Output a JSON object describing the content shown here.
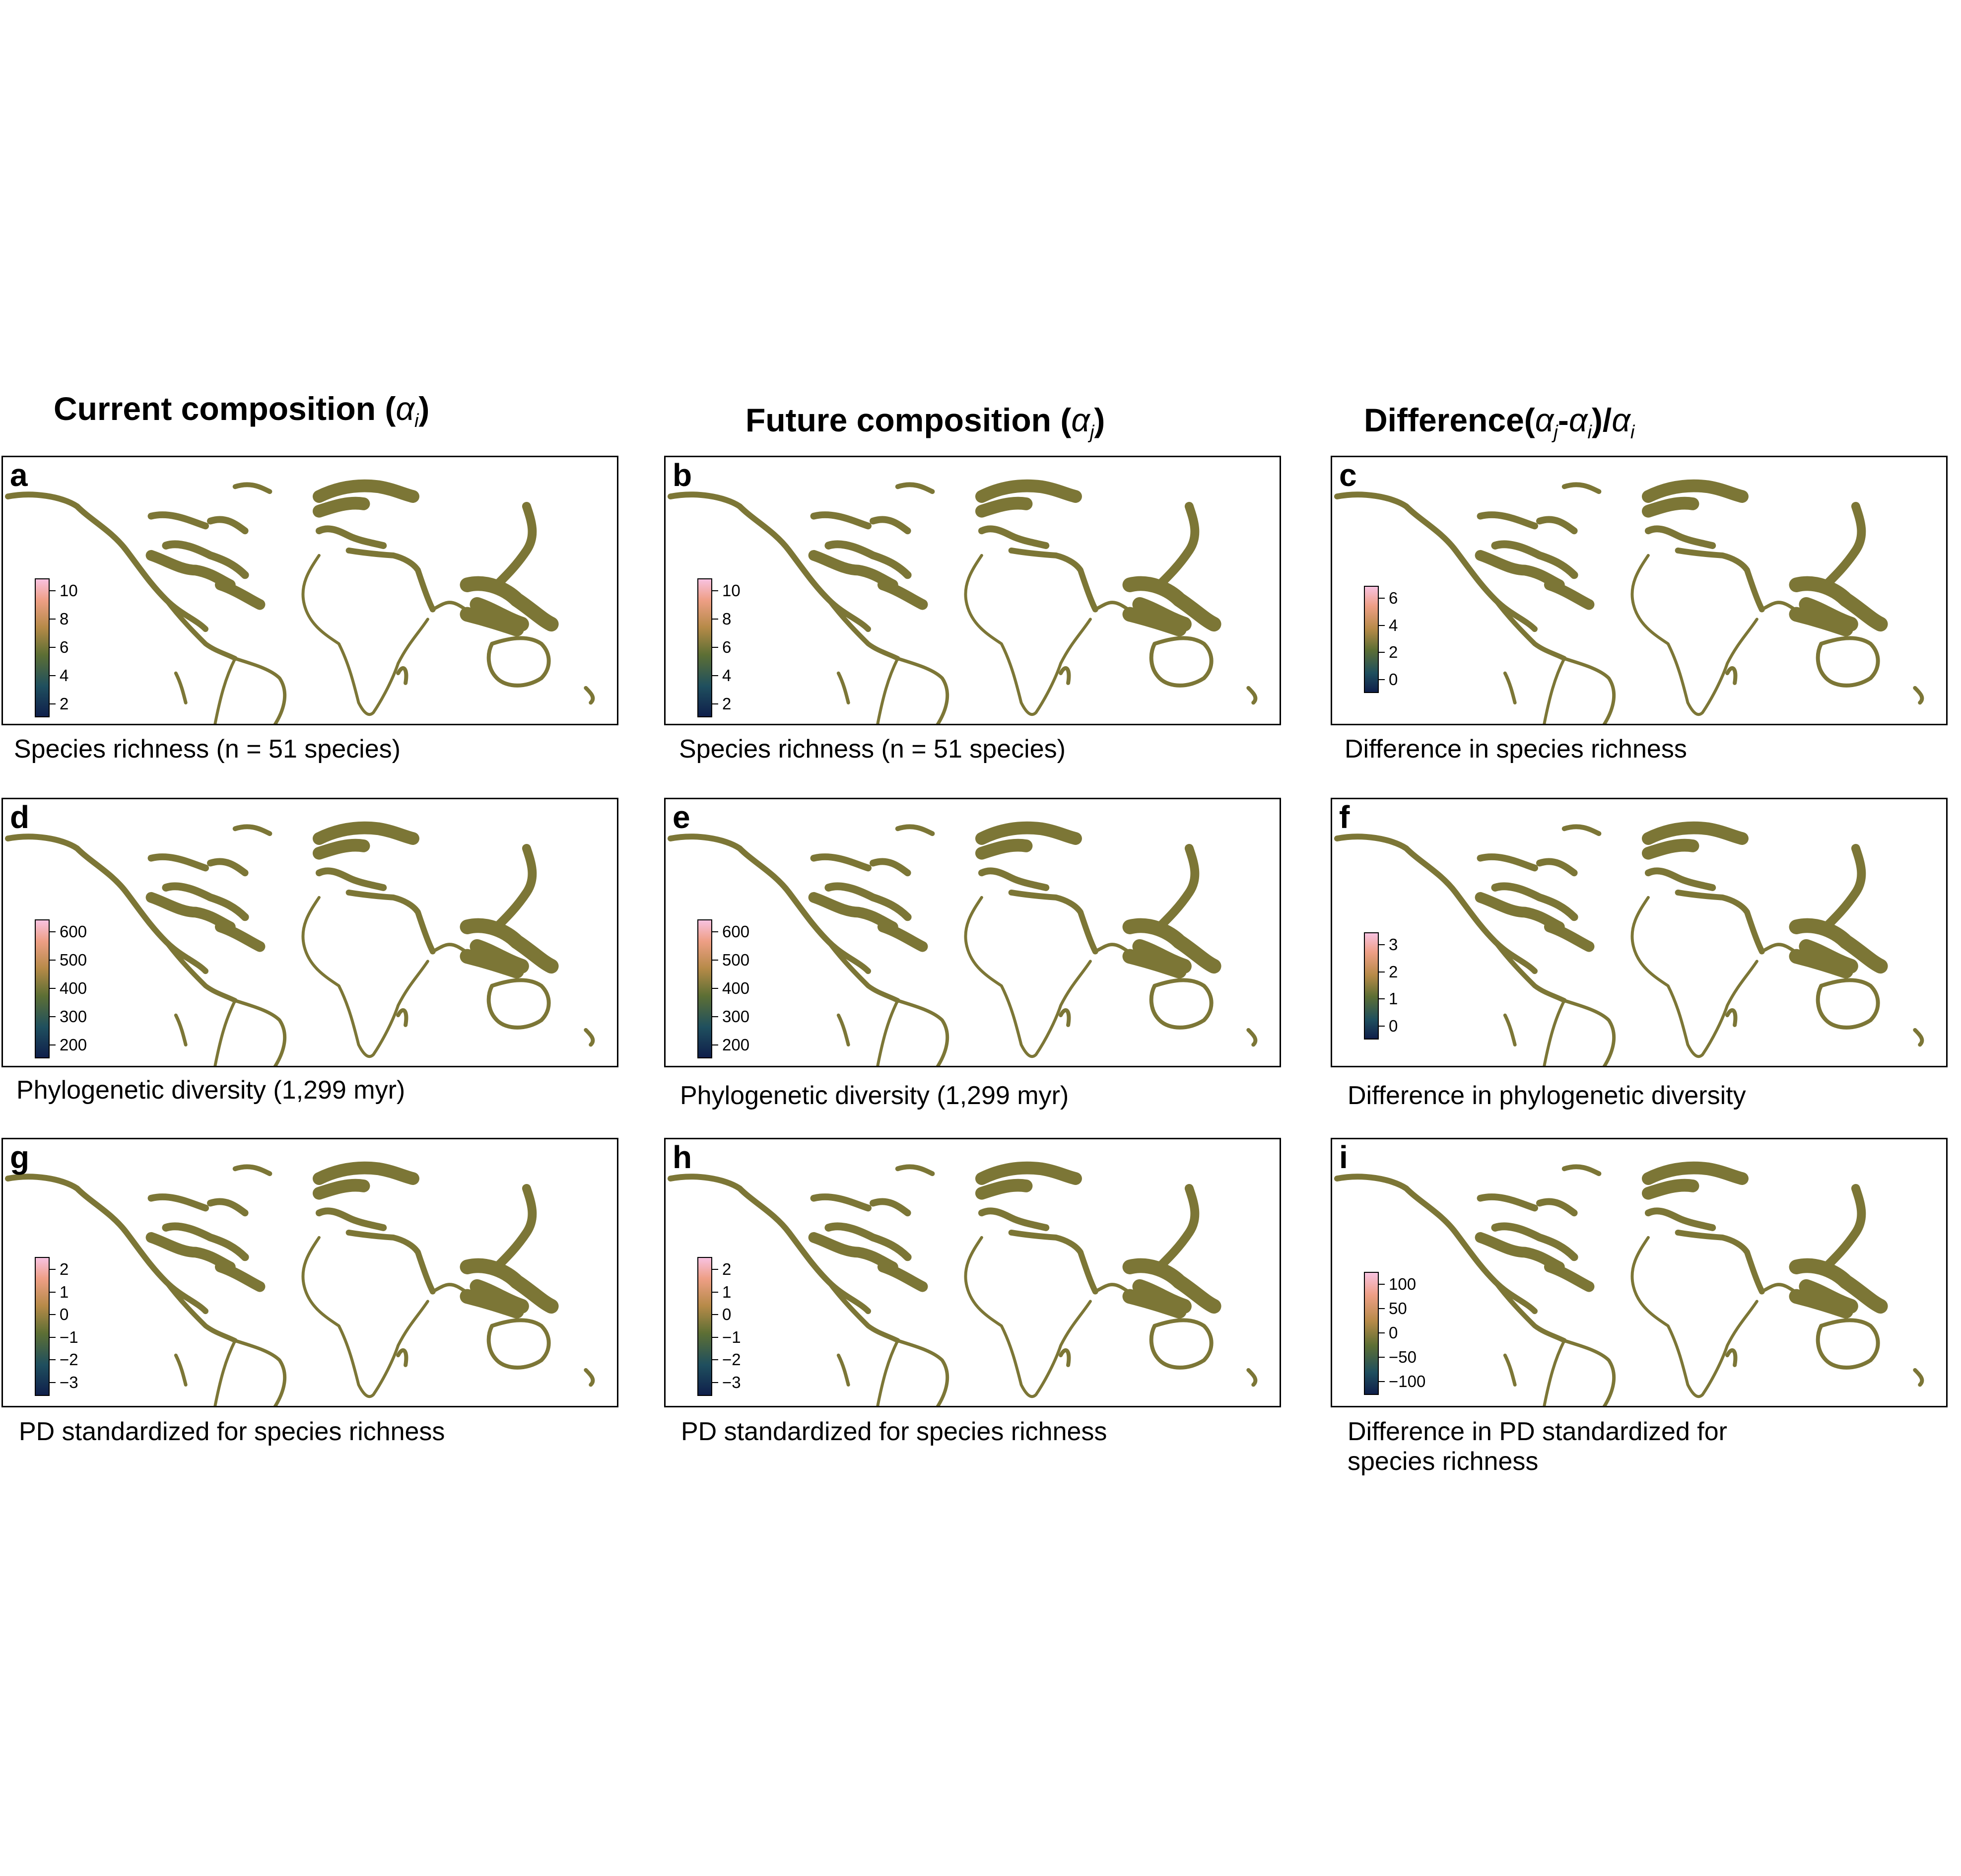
{
  "columns": [
    {
      "title_text": "Current composition (",
      "alpha": "α",
      "sub": "i",
      "close": ")"
    },
    {
      "title_text": "Future composition (",
      "alpha": "α",
      "sub": "j",
      "close": ")"
    },
    {
      "title_text": "Difference(",
      "a1": "α",
      "s1": "j",
      "mid": "-",
      "a2": "α",
      "s2": "i",
      "mid2": ")/",
      "a3": "α",
      "s3": "i"
    }
  ],
  "panels": [
    {
      "label": "a",
      "caption": "Species richness (n = 51 species)",
      "ticks": [
        "10",
        "8",
        "6",
        "4",
        "2"
      ],
      "scheme": "richness"
    },
    {
      "label": "b",
      "caption": "Species richness (n = 51 species)",
      "ticks": [
        "10",
        "8",
        "6",
        "4",
        "2"
      ],
      "scheme": "richness"
    },
    {
      "label": "c",
      "caption": "Difference in species richness",
      "ticks": [
        "6",
        "4",
        "2",
        "0"
      ],
      "scheme": "diff"
    },
    {
      "label": "d",
      "caption": "Phylogenetic diversity (1,299 myr)",
      "ticks": [
        "600",
        "500",
        "400",
        "300",
        "200"
      ],
      "scheme": "richness"
    },
    {
      "label": "e",
      "caption": "Phylogenetic diversity (1,299 myr)",
      "ticks": [
        "600",
        "500",
        "400",
        "300",
        "200"
      ],
      "scheme": "richness"
    },
    {
      "label": "f",
      "caption": "Difference in phylogenetic diversity",
      "ticks": [
        "3",
        "2",
        "1",
        "0"
      ],
      "scheme": "diff"
    },
    {
      "label": "g",
      "caption": "PD standardized for species richness",
      "ticks": [
        "2",
        "1",
        "0",
        "−1",
        "−2",
        "−3"
      ],
      "scheme": "ses"
    },
    {
      "label": "h",
      "caption": "PD standardized for species richness",
      "ticks": [
        "2",
        "1",
        "0",
        "−1",
        "−2",
        "−3"
      ],
      "scheme": "ses"
    },
    {
      "label": "i",
      "caption": "Difference in PD standardized for\nspecies richness",
      "ticks": [
        "100",
        "50",
        "0",
        "−50",
        "−100"
      ],
      "scheme": "olive"
    }
  ]
}
